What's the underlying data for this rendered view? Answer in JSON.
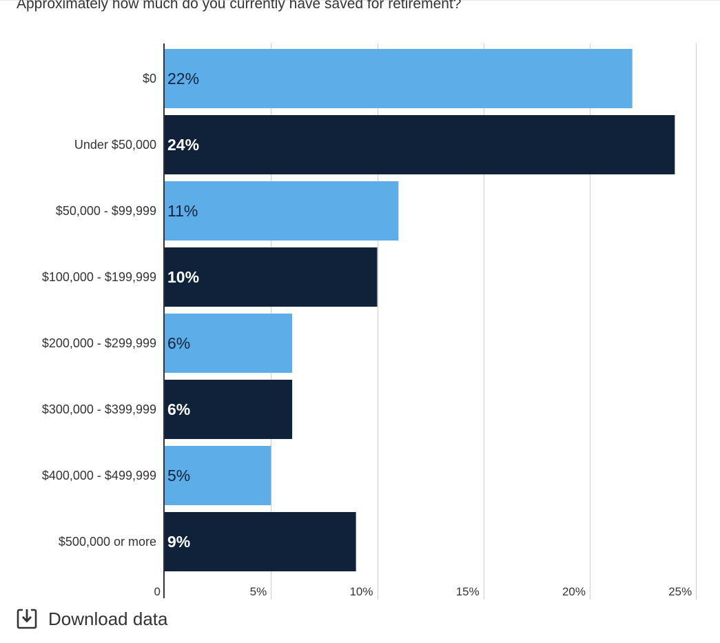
{
  "chart_data": {
    "type": "bar",
    "orientation": "horizontal",
    "title": "Approximately how much do you currently have saved for retirement?",
    "categories": [
      "$0",
      "Under $50,000",
      "$50,000 - $99,999",
      "$100,000 - $199,999",
      "$200,000 - $299,999",
      "$300,000 - $399,999",
      "$400,000 - $499,999",
      "$500,000 or more"
    ],
    "values": [
      22,
      24,
      11,
      10,
      6,
      6,
      5,
      9
    ],
    "data_labels": [
      "22%",
      "24%",
      "11%",
      "10%",
      "6%",
      "6%",
      "5%",
      "9%"
    ],
    "bar_colors": [
      "#5dade8",
      "#0f223a",
      "#5dade8",
      "#0f223a",
      "#5dade8",
      "#0f223a",
      "#5dade8",
      "#0f223a"
    ],
    "label_colors": [
      "#0f223a",
      "#ffffff",
      "#0f223a",
      "#ffffff",
      "#0f223a",
      "#ffffff",
      "#0f223a",
      "#ffffff"
    ],
    "xlim": [
      0,
      25
    ],
    "xticks": [
      0,
      5,
      10,
      15,
      20,
      25
    ],
    "xtick_labels": [
      "0",
      "5%",
      "10%",
      "15%",
      "20%",
      "25%"
    ],
    "grid": true,
    "legend": "none"
  },
  "footer": {
    "download_label": "Download data",
    "download_icon": "download-icon"
  }
}
